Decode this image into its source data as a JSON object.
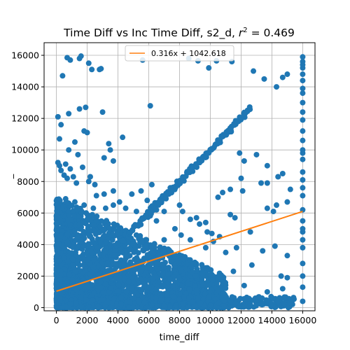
{
  "chart_data": {
    "type": "scatter",
    "title": "Time Diff vs Inc Time Diff, s2_d, ",
    "title_r2_label": "r",
    "title_r2_exponent": "2",
    "title_r2_value": " = 0.469",
    "xlabel": "time_diff",
    "ylabel": "_",
    "xlim": [
      -800,
      16800
    ],
    "ylim": [
      -200,
      16800
    ],
    "xticks": [
      0,
      2000,
      4000,
      6000,
      8000,
      10000,
      12000,
      14000,
      16000
    ],
    "yticks": [
      0,
      2000,
      4000,
      6000,
      8000,
      10000,
      12000,
      14000,
      16000
    ],
    "grid": true,
    "legend_position": "top-center",
    "colors": {
      "points": "#1f77b4",
      "fit": "#ff7f0e",
      "grid": "#b0b0b0"
    },
    "fit": {
      "label": "0.316x + 1042.618",
      "slope": 0.316,
      "intercept": 1042.618,
      "x_range": [
        0,
        16000
      ]
    },
    "series": [
      {
        "points": [
          [
            700,
            15850
          ],
          [
            900,
            15700
          ],
          [
            1500,
            15800
          ],
          [
            1600,
            15950
          ],
          [
            2100,
            15500
          ],
          [
            2300,
            15100
          ],
          [
            2800,
            15100
          ],
          [
            2900,
            15150
          ],
          [
            5600,
            15700
          ],
          [
            8600,
            15800
          ],
          [
            9200,
            15650
          ],
          [
            10400,
            15650
          ],
          [
            11400,
            15600
          ],
          [
            400,
            14700
          ],
          [
            9900,
            15200
          ],
          [
            12800,
            15000
          ],
          [
            13500,
            14500
          ],
          [
            14300,
            14000
          ],
          [
            14700,
            14600
          ],
          [
            15000,
            14800
          ],
          [
            800,
            12300
          ],
          [
            1500,
            12600
          ],
          [
            1900,
            12700
          ],
          [
            3000,
            12400
          ],
          [
            6100,
            12800
          ],
          [
            1800,
            11200
          ],
          [
            2000,
            11100
          ],
          [
            4300,
            10800
          ],
          [
            3400,
            10400
          ],
          [
            3500,
            10000
          ],
          [
            800,
            10000
          ],
          [
            1200,
            10500
          ],
          [
            1400,
            9700
          ],
          [
            11900,
            9800
          ],
          [
            12200,
            9300
          ],
          [
            13000,
            9700
          ],
          [
            13700,
            9000
          ],
          [
            14700,
            8500
          ],
          [
            12000,
            8200
          ],
          [
            14400,
            8300
          ],
          [
            13300,
            7900
          ],
          [
            13700,
            7900
          ],
          [
            11300,
            7500
          ],
          [
            10500,
            7000
          ],
          [
            10800,
            7300
          ],
          [
            12100,
            7400
          ],
          [
            14300,
            6500
          ],
          [
            15000,
            6700
          ],
          [
            15200,
            7500
          ],
          [
            13700,
            6300
          ],
          [
            14100,
            6100
          ],
          [
            11300,
            5900
          ],
          [
            11600,
            5700
          ],
          [
            12600,
            4800
          ],
          [
            14200,
            3900
          ],
          [
            15000,
            3300
          ],
          [
            14600,
            2000
          ],
          [
            15000,
            1900
          ],
          [
            14700,
            1200
          ],
          [
            14400,
            400
          ],
          [
            15200,
            300
          ],
          [
            13700,
            1000
          ],
          [
            13200,
            600
          ],
          [
            12700,
            2700
          ],
          [
            13400,
            3600
          ],
          [
            11500,
            2300
          ],
          [
            12200,
            1400
          ],
          [
            11000,
            3500
          ],
          [
            11700,
            3800
          ],
          [
            10600,
            4500
          ],
          [
            16000,
            15900
          ],
          [
            16000,
            15600
          ],
          [
            16000,
            15200
          ],
          [
            16000,
            14800
          ],
          [
            16000,
            14400
          ],
          [
            16000,
            13600
          ],
          [
            16000,
            13000
          ],
          [
            16000,
            12400
          ],
          [
            16000,
            11200
          ],
          [
            16000,
            10600
          ],
          [
            16000,
            10000
          ],
          [
            16000,
            9400
          ],
          [
            16000,
            8600
          ],
          [
            16000,
            8100
          ],
          [
            16000,
            7600
          ],
          [
            16000,
            7100
          ],
          [
            16000,
            6200
          ],
          [
            16000,
            5500
          ],
          [
            16000,
            4800
          ],
          [
            16000,
            4300
          ],
          [
            16000,
            3800
          ],
          [
            16000,
            2800
          ],
          [
            16000,
            2000
          ],
          [
            16000,
            1300
          ],
          [
            16000,
            400
          ],
          [
            16000,
            15400
          ],
          [
            16000,
            13900
          ],
          [
            16000,
            11900
          ],
          [
            16000,
            9800
          ],
          [
            16000,
            5000
          ],
          [
            100,
            9200
          ],
          [
            200,
            9000
          ],
          [
            300,
            8700
          ],
          [
            500,
            8400
          ],
          [
            700,
            8200
          ],
          [
            900,
            8800
          ],
          [
            1100,
            8300
          ],
          [
            1300,
            7900
          ],
          [
            2100,
            8000
          ],
          [
            2500,
            7800
          ],
          [
            2600,
            7100
          ],
          [
            3100,
            7200
          ],
          [
            3700,
            7400
          ],
          [
            4100,
            6700
          ],
          [
            4900,
            7200
          ],
          [
            5500,
            7400
          ],
          [
            5900,
            6800
          ],
          [
            6200,
            7800
          ],
          [
            6500,
            6200
          ],
          [
            7000,
            6100
          ],
          [
            7400,
            7600
          ],
          [
            8000,
            6500
          ],
          [
            8200,
            6100
          ],
          [
            8700,
            5600
          ],
          [
            9100,
            5700
          ],
          [
            9300,
            5300
          ],
          [
            9700,
            5400
          ],
          [
            9800,
            4800
          ],
          [
            10100,
            4700
          ],
          [
            10200,
            4200
          ],
          [
            9700,
            3800
          ],
          [
            8700,
            4300
          ],
          [
            8100,
            4600
          ],
          [
            7700,
            5000
          ],
          [
            7000,
            4300
          ],
          [
            6500,
            5500
          ],
          [
            5800,
            5800
          ],
          [
            5200,
            6100
          ],
          [
            4500,
            6300
          ],
          [
            3700,
            6500
          ],
          [
            3200,
            6300
          ],
          [
            2400,
            6300
          ],
          [
            1800,
            6500
          ],
          [
            1200,
            6700
          ],
          [
            600,
            6900
          ],
          [
            100,
            6400
          ],
          [
            3100,
            9500
          ],
          [
            3700,
            9300
          ],
          [
            2200,
            8300
          ],
          [
            1700,
            8900
          ],
          [
            100,
            12100
          ],
          [
            300,
            11600
          ],
          [
            200,
            10700
          ],
          [
            600,
            9100
          ]
        ]
      }
    ]
  }
}
